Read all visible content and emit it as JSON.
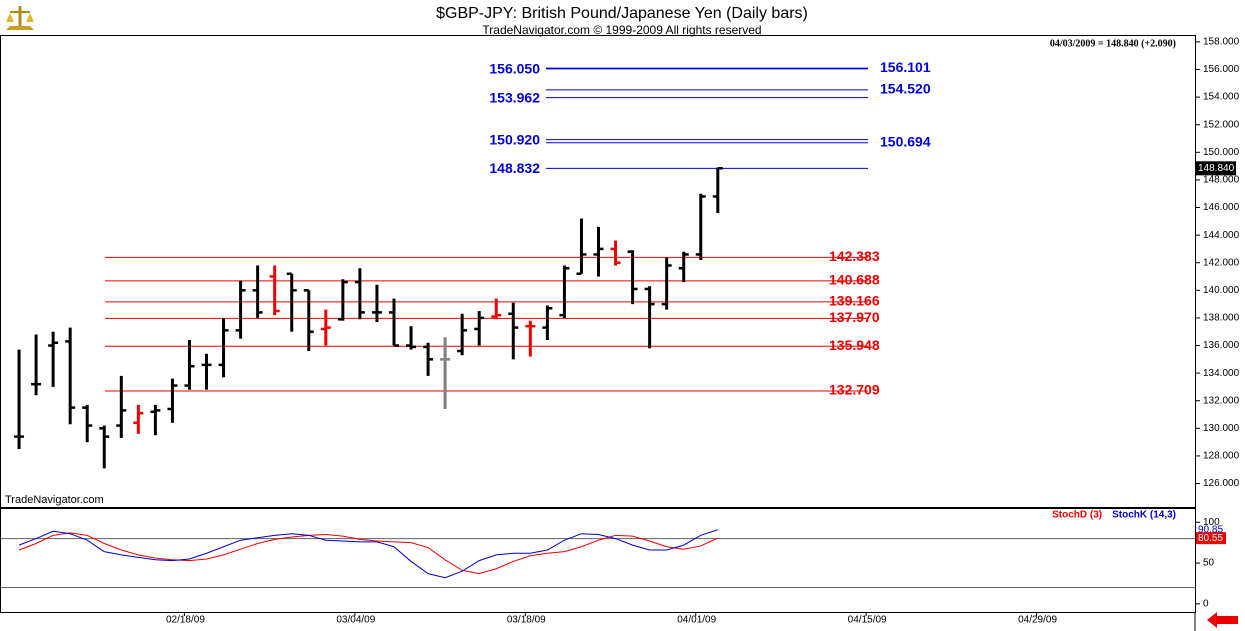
{
  "chart_data": [
    {
      "type": "ohlc",
      "title": "$GBP-JPY:  British Pound/Japanese Yen  (Daily bars)",
      "subtitle": "TradeNavigator.com © 1999-2009 All rights reserved",
      "info": "04/03/2009 = 148.840 (+2.090)",
      "watermark": "TradeNavigator.com",
      "x": [
        "02/05/09",
        "02/06/09",
        "02/09/09",
        "02/10/09",
        "02/11/09",
        "02/12/09",
        "02/13/09",
        "02/16/09",
        "02/17/09",
        "02/18/09",
        "02/19/09",
        "02/20/09",
        "02/23/09",
        "02/24/09",
        "02/25/09",
        "02/26/09",
        "02/27/09",
        "03/02/09",
        "03/03/09",
        "03/04/09",
        "03/05/09",
        "03/06/09",
        "03/09/09",
        "03/10/09",
        "03/11/09",
        "03/12/09",
        "03/13/09",
        "03/16/09",
        "03/17/09",
        "03/18/09",
        "03/19/09",
        "03/20/09",
        "03/23/09",
        "03/24/09",
        "03/25/09",
        "03/26/09",
        "03/27/09",
        "03/30/09",
        "03/31/09",
        "04/01/09",
        "04/02/09",
        "04/03/09"
      ],
      "series": [
        {
          "color": "#000000",
          "open": [
            129.4,
            133.2,
            136.0,
            136.3,
            131.5,
            130.0,
            130.2,
            130.4,
            131.2,
            131.4,
            133.1,
            134.6,
            134.6,
            137.1,
            140.0,
            141.0,
            141.2,
            140.0,
            137.2,
            137.9,
            140.6,
            138.4,
            138.4,
            136.0,
            135.9,
            135.0,
            135.6,
            137.2,
            138.1,
            138.3,
            137.4,
            137.3,
            138.2,
            141.2,
            142.6,
            143.0,
            142.8,
            140.1,
            139.0,
            141.6,
            142.6,
            146.8
          ],
          "high": [
            135.7,
            136.8,
            137.0,
            137.3,
            131.7,
            130.2,
            133.8,
            131.7,
            131.7,
            133.6,
            136.4,
            135.4,
            138.0,
            140.7,
            141.8,
            141.8,
            141.2,
            140.0,
            138.6,
            140.8,
            141.6,
            140.4,
            139.4,
            137.4,
            136.2,
            136.6,
            138.3,
            138.5,
            139.4,
            139.1,
            137.8,
            138.9,
            141.8,
            145.2,
            144.6,
            143.6,
            142.9,
            140.3,
            142.4,
            142.8,
            147.0,
            148.9
          ],
          "low": [
            128.5,
            132.4,
            133.0,
            130.3,
            129.0,
            127.1,
            129.3,
            129.6,
            129.5,
            130.4,
            132.8,
            132.8,
            133.7,
            136.5,
            138.0,
            138.2,
            137.0,
            135.6,
            136.0,
            137.8,
            137.9,
            137.7,
            136.0,
            135.7,
            133.8,
            131.4,
            135.3,
            136.0,
            137.9,
            135.0,
            135.2,
            136.4,
            138.0,
            141.2,
            141.0,
            141.8,
            139.0,
            135.8,
            138.6,
            140.6,
            142.2,
            145.6
          ],
          "close": [
            129.4,
            133.2,
            136.2,
            131.5,
            130.2,
            129.4,
            131.3,
            131.1,
            131.3,
            133.1,
            134.5,
            134.6,
            137.1,
            140.0,
            138.4,
            138.5,
            140.0,
            137.0,
            137.3,
            140.6,
            138.4,
            138.4,
            136.0,
            135.9,
            135.0,
            135.0,
            137.1,
            138.0,
            138.2,
            137.3,
            137.4,
            138.7,
            141.6,
            142.6,
            143.0,
            142.0,
            140.1,
            139.0,
            141.8,
            142.6,
            146.8,
            148.84
          ],
          "bar_colors": [
            "#000000",
            "#000000",
            "#000000",
            "#000000",
            "#000000",
            "#000000",
            "#000000",
            "#ee0000",
            "#000000",
            "#000000",
            "#000000",
            "#000000",
            "#000000",
            "#000000",
            "#000000",
            "#ee0000",
            "#000000",
            "#000000",
            "#ee0000",
            "#000000",
            "#000000",
            "#000000",
            "#000000",
            "#000000",
            "#000000",
            "#808080",
            "#000000",
            "#000000",
            "#ee0000",
            "#000000",
            "#ee0000",
            "#000000",
            "#000000",
            "#000000",
            "#000000",
            "#ee0000",
            "#000000",
            "#000000",
            "#000000",
            "#000000",
            "#000000",
            "#000000"
          ],
          "last_label": "148.840"
        }
      ],
      "red_levels": [
        {
          "value": 142.383,
          "label": "142.383"
        },
        {
          "value": 140.688,
          "label": "140.688"
        },
        {
          "value": 139.166,
          "label": "139.166"
        },
        {
          "value": 137.97,
          "label": "137.970"
        },
        {
          "value": 135.948,
          "label": "135.948"
        },
        {
          "value": 132.709,
          "label": "132.709"
        }
      ],
      "red_color": "#ee0000",
      "blue_levels": [
        {
          "value": 156.05,
          "label": "156.050",
          "side": "left"
        },
        {
          "value": 156.101,
          "label": "156.101",
          "side": "right"
        },
        {
          "value": 153.962,
          "label": "153.962",
          "side": "left"
        },
        {
          "value": 154.52,
          "label": "154.520",
          "side": "right"
        },
        {
          "value": 150.92,
          "label": "150.920",
          "side": "left"
        },
        {
          "value": 150.694,
          "label": "150.694",
          "side": "right"
        },
        {
          "value": 148.832,
          "label": "148.832",
          "side": "left"
        }
      ],
      "blue_color": "#0000dd",
      "xlim": [
        "02/04/09",
        "05/13/09"
      ],
      "xticks": [
        "02/18/09",
        "03/04/09",
        "03/18/09",
        "04/01/09",
        "04/15/09",
        "04/29/09"
      ],
      "ylim": [
        124.3,
        158.5
      ],
      "yticks": [
        {
          "value": 158,
          "label": "158.000"
        },
        {
          "value": 156,
          "label": "156.000"
        },
        {
          "value": 154,
          "label": "154.000"
        },
        {
          "value": 152,
          "label": "152.000"
        },
        {
          "value": 150,
          "label": "150.000"
        },
        {
          "value": 148,
          "label": "148.000"
        },
        {
          "value": 146,
          "label": "146.000"
        },
        {
          "value": 144,
          "label": "144.000"
        },
        {
          "value": 142,
          "label": "142.000"
        },
        {
          "value": 140,
          "label": "140.000"
        },
        {
          "value": 138,
          "label": "138.000"
        },
        {
          "value": 136,
          "label": "136.000"
        },
        {
          "value": 134,
          "label": "134.000"
        },
        {
          "value": 132,
          "label": "132.000"
        },
        {
          "value": 130,
          "label": "130.000"
        },
        {
          "value": 128,
          "label": "128.000"
        },
        {
          "value": 126,
          "label": "126.000"
        }
      ]
    },
    {
      "type": "line",
      "series": [
        {
          "name": "StochD (3)",
          "color": "#ee0000",
          "last_label": "80.55",
          "values": [
            66,
            74,
            84,
            87,
            84,
            74,
            66,
            60,
            56,
            54,
            53,
            55,
            60,
            67,
            74,
            79,
            82,
            84,
            85,
            83,
            79,
            77,
            76,
            75,
            69,
            54,
            41,
            37,
            43,
            52,
            59,
            62,
            64,
            70,
            78,
            84,
            83,
            77,
            70,
            67,
            71,
            80.55
          ]
        },
        {
          "name": "StochK (14,3)",
          "color": "#0000cc",
          "last_label": "90.85",
          "values": [
            72,
            80,
            89,
            86,
            78,
            64,
            60,
            57,
            54,
            53,
            55,
            62,
            70,
            78,
            81,
            84,
            86,
            84,
            78,
            77,
            76,
            76,
            70,
            52,
            37,
            32,
            40,
            53,
            60,
            62,
            62,
            66,
            78,
            86,
            85,
            80,
            72,
            66,
            66,
            72,
            84,
            90.85
          ]
        }
      ],
      "reference_lines": [
        80,
        20
      ],
      "ylim": [
        -10,
        117.5
      ],
      "yticks": [
        100,
        50,
        0
      ]
    }
  ]
}
